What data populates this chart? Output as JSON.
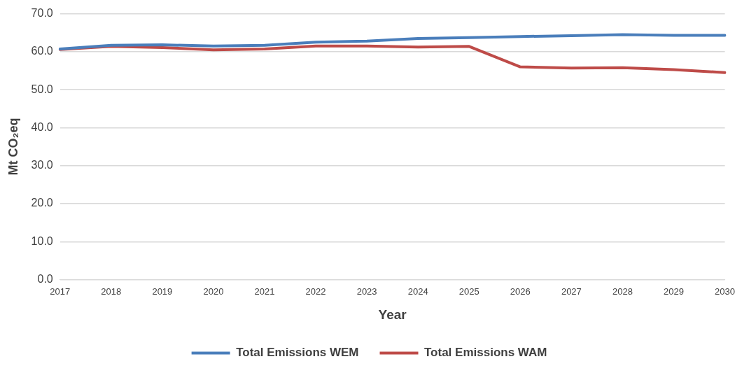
{
  "chart_data": {
    "type": "line",
    "xlabel": "Year",
    "ylabel": "Mt CO₂eq",
    "categories": [
      "2017",
      "2018",
      "2019",
      "2020",
      "2021",
      "2022",
      "2023",
      "2024",
      "2025",
      "2026",
      "2027",
      "2028",
      "2029",
      "2030"
    ],
    "series": [
      {
        "name": "Total Emissions WEM",
        "color": "#4a7ebb",
        "values": [
          60.7,
          61.7,
          61.8,
          61.5,
          61.7,
          62.5,
          62.8,
          63.5,
          63.7,
          64.0,
          64.2,
          64.5,
          64.3,
          64.3
        ]
      },
      {
        "name": "Total Emissions WAM",
        "color": "#be4b48",
        "values": [
          60.6,
          61.4,
          61.1,
          60.5,
          60.7,
          61.5,
          61.5,
          61.2,
          61.4,
          56.0,
          55.7,
          55.8,
          55.3,
          54.5
        ]
      }
    ],
    "ylim": [
      0,
      70
    ],
    "yticks": [
      {
        "value": 0,
        "label": "0.0"
      },
      {
        "value": 10,
        "label": "10.0"
      },
      {
        "value": 20,
        "label": "20.0"
      },
      {
        "value": 30,
        "label": "30.0"
      },
      {
        "value": 40,
        "label": "40.0"
      },
      {
        "value": 50,
        "label": "50.0"
      },
      {
        "value": 60,
        "label": "60.0"
      },
      {
        "value": 70,
        "label": "70.0"
      }
    ],
    "grid": "y",
    "legend": "bottom",
    "marker": "none",
    "line_style": "solid"
  }
}
